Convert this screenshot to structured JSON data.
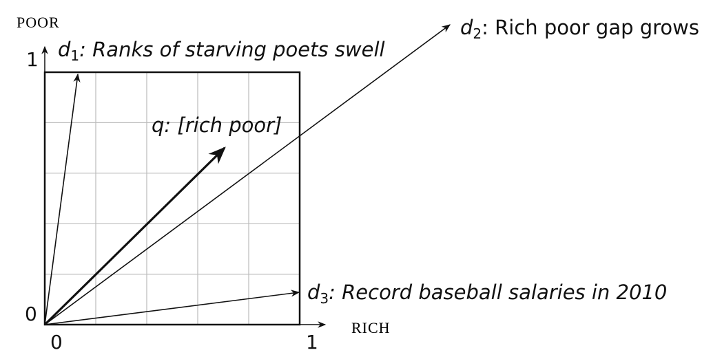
{
  "axes": {
    "y_title": "POOR",
    "x_title": "RICH",
    "y_max": "1",
    "y_min": "0",
    "x_min": "0",
    "x_max": "1"
  },
  "vectors": [
    {
      "symbol": "d",
      "subscript": "1",
      "label": ": Ranks of starving poets swell"
    },
    {
      "symbol": "d",
      "subscript": "2",
      "label": ": Rich poor gap grows"
    },
    {
      "symbol": "q",
      "label": ": [rich poor]"
    },
    {
      "symbol": "d",
      "subscript": "3",
      "label": ": Record baseball salaries in 2010"
    }
  ]
}
